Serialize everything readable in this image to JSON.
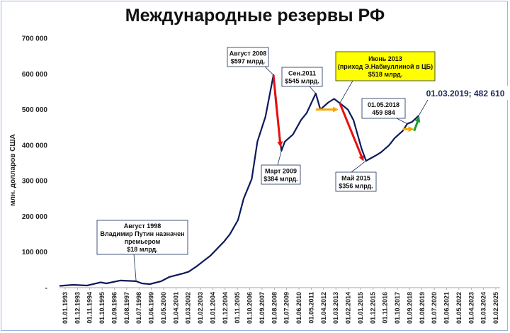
{
  "chart_data": {
    "type": "line",
    "title": "Международные резервы РФ",
    "ylabel": "млн. долларов США",
    "ylim": [
      0,
      700000
    ],
    "yticks": [
      "-",
      "100 000",
      "200 000",
      "300 000",
      "400 000",
      "500 000",
      "600 000",
      "700 000"
    ],
    "grid": false,
    "series": [
      {
        "color": "#0d1a5c",
        "x": [
          "1993-01-01",
          "1994-01-01",
          "1995-01-01",
          "1996-01-01",
          "1996-06-01",
          "1997-06-01",
          "1998-08-01",
          "1999-01-01",
          "1999-08-01",
          "2000-06-01",
          "2001-01-01",
          "2002-01-01",
          "2002-06-01",
          "2003-01-01",
          "2004-01-01",
          "2005-01-01",
          "2005-06-01",
          "2006-01-01",
          "2006-06-01",
          "2007-01-01",
          "2007-06-01",
          "2008-01-01",
          "2008-08-01",
          "2008-10-01",
          "2009-03-01",
          "2009-06-01",
          "2010-01-01",
          "2010-08-01",
          "2011-01-01",
          "2011-09-01",
          "2012-01-01",
          "2012-08-01",
          "2013-01-01",
          "2013-06-01",
          "2014-01-01",
          "2014-06-01",
          "2015-01-01",
          "2015-05-01",
          "2016-01-01",
          "2016-06-01",
          "2017-01-01",
          "2017-06-01",
          "2018-01-01",
          "2018-05-01",
          "2018-09-01",
          "2019-03-01"
        ],
        "values": [
          5000,
          8000,
          6000,
          15000,
          12000,
          20000,
          18000,
          12000,
          10000,
          18000,
          30000,
          40000,
          45000,
          60000,
          90000,
          130000,
          150000,
          190000,
          250000,
          305000,
          410000,
          480000,
          597000,
          520000,
          384000,
          410000,
          430000,
          470000,
          490000,
          545000,
          500000,
          520000,
          530000,
          518000,
          500000,
          470000,
          390000,
          356000,
          370000,
          380000,
          400000,
          420000,
          440000,
          459884,
          465000,
          482610
        ]
      }
    ],
    "xticks": [
      "01.01.1993",
      "01.12.1993",
      "01.11.1994",
      "01.10.1995",
      "01.09.1996",
      "01.08.1997",
      "01.07.1998",
      "01.06.1999",
      "01.05.2000",
      "01.04.2001",
      "01.03.2002",
      "01.02.2003",
      "01.01.2004",
      "01.12.2004",
      "01.11.2005",
      "01.10.2006",
      "01.09.2007",
      "01.08.2008",
      "01.07.2009",
      "01.06.2010",
      "01.05.2011",
      "01.04.2012",
      "01.03.2013",
      "01.02.2014",
      "01.01.2015",
      "01.12.2015",
      "01.11.2016",
      "01.10.2017",
      "01.09.2018",
      "01.08.2019",
      "01.07.2020",
      "01.06.2021",
      "01.05.2022",
      "01.04.2023",
      "01.03.2024",
      "01.02.2025"
    ],
    "annotations": [
      {
        "lines": [
          "Август 1998",
          "Владимир Путин назначен",
          "премьером",
          "$18 млрд."
        ],
        "point": {
          "x": "1998-08-01",
          "y": 18000
        }
      },
      {
        "lines": [
          "Август 2008",
          "$597 млрд."
        ],
        "point": {
          "x": "2008-08-01",
          "y": 597000
        }
      },
      {
        "lines": [
          "Март 2009",
          "$384 млрд."
        ],
        "point": {
          "x": "2009-03-01",
          "y": 384000
        }
      },
      {
        "lines": [
          "Сен.2011",
          "$545 млрд."
        ],
        "point": {
          "x": "2011-09-01",
          "y": 545000
        }
      },
      {
        "lines": [
          "Июнь  2013",
          "(приход Э.Набиуллиной  в ЦБ)",
          "$518 млрд."
        ],
        "point": {
          "x": "2013-06-01",
          "y": 518000
        },
        "highlight": true
      },
      {
        "lines": [
          "Май 2015",
          "$356 млрд."
        ],
        "point": {
          "x": "2015-05-01",
          "y": 356000
        }
      },
      {
        "lines": [
          "01.05.2018",
          "459 884"
        ],
        "point": {
          "x": "2018-05-01",
          "y": 459884
        }
      },
      {
        "lines": [
          "01.03.2019; 482 610"
        ],
        "point": {
          "x": "2019-03-01",
          "y": 482610
        },
        "big": true
      }
    ],
    "arrows": [
      {
        "color": "#e8100d",
        "from": {
          "x": "2008-08-01",
          "y": 597000
        },
        "to": {
          "x": "2009-02-01",
          "y": 400000
        }
      },
      {
        "color": "#f5a800",
        "from": {
          "x": "2011-09-01",
          "y": 500000
        },
        "to": {
          "x": "2013-03-01",
          "y": 500000
        }
      },
      {
        "color": "#e8100d",
        "from": {
          "x": "2013-06-01",
          "y": 518000
        },
        "to": {
          "x": "2015-02-01",
          "y": 360000
        }
      },
      {
        "color": "#f5a800",
        "from": {
          "x": "2018-01-01",
          "y": 445000
        },
        "to": {
          "x": "2018-09-01",
          "y": 445000
        }
      },
      {
        "color": "#1e9c2e",
        "from": {
          "x": "2018-11-01",
          "y": 440000
        },
        "to": {
          "x": "2019-03-01",
          "y": 475000
        }
      }
    ]
  }
}
